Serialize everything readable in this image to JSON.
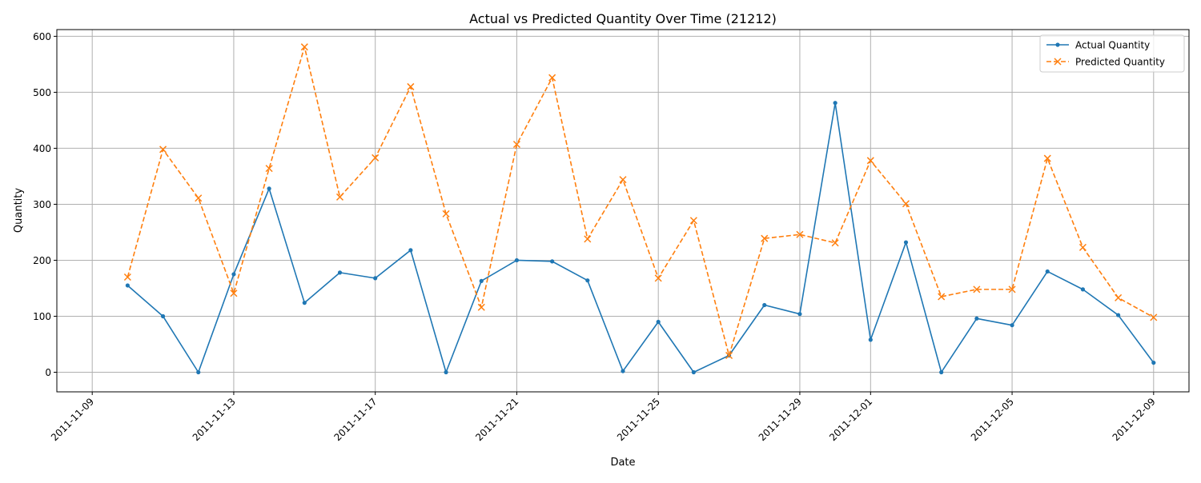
{
  "chart_data": {
    "type": "line",
    "title": "Actual vs Predicted Quantity Over Time (21212)",
    "xlabel": "Date",
    "ylabel": "Quantity",
    "x_is_date": true,
    "xlim": [
      "2011-11-08",
      "2011-12-10"
    ],
    "ylim": [
      -35,
      612
    ],
    "x_ticks": [
      "2011-11-09",
      "2011-11-13",
      "2011-11-17",
      "2011-11-21",
      "2011-11-25",
      "2011-11-29",
      "2011-12-01",
      "2011-12-05",
      "2011-12-09"
    ],
    "y_ticks": [
      0,
      100,
      200,
      300,
      400,
      500,
      600
    ],
    "grid": true,
    "legend_position": "top-right",
    "x": [
      "2011-11-10",
      "2011-11-11",
      "2011-11-12",
      "2011-11-13",
      "2011-11-14",
      "2011-11-15",
      "2011-11-16",
      "2011-11-17",
      "2011-11-18",
      "2011-11-19",
      "2011-11-20",
      "2011-11-21",
      "2011-11-22",
      "2011-11-23",
      "2011-11-24",
      "2011-11-25",
      "2011-11-26",
      "2011-11-27",
      "2011-11-28",
      "2011-11-29",
      "2011-11-30",
      "2011-12-01",
      "2011-12-02",
      "2011-12-03",
      "2011-12-04",
      "2011-12-05",
      "2011-12-06",
      "2011-12-07",
      "2011-12-08",
      "2011-12-09"
    ],
    "series": [
      {
        "name": "Actual Quantity",
        "color": "#1f77b4",
        "style": "solid",
        "marker": "dot",
        "values": [
          155,
          100,
          0,
          175,
          328,
          124,
          178,
          168,
          218,
          0,
          163,
          200,
          198,
          164,
          2,
          90,
          0,
          30,
          120,
          104,
          481,
          58,
          232,
          0,
          96,
          84,
          180,
          148,
          102,
          17
        ]
      },
      {
        "name": "Predicted Quantity",
        "color": "#ff7f0e",
        "style": "dashed",
        "marker": "x",
        "values": [
          170,
          398,
          311,
          141,
          364,
          581,
          313,
          383,
          510,
          283,
          116,
          407,
          526,
          238,
          344,
          168,
          271,
          30,
          239,
          246,
          231,
          378,
          301,
          135,
          148,
          148,
          382,
          223,
          133,
          98
        ]
      }
    ]
  }
}
